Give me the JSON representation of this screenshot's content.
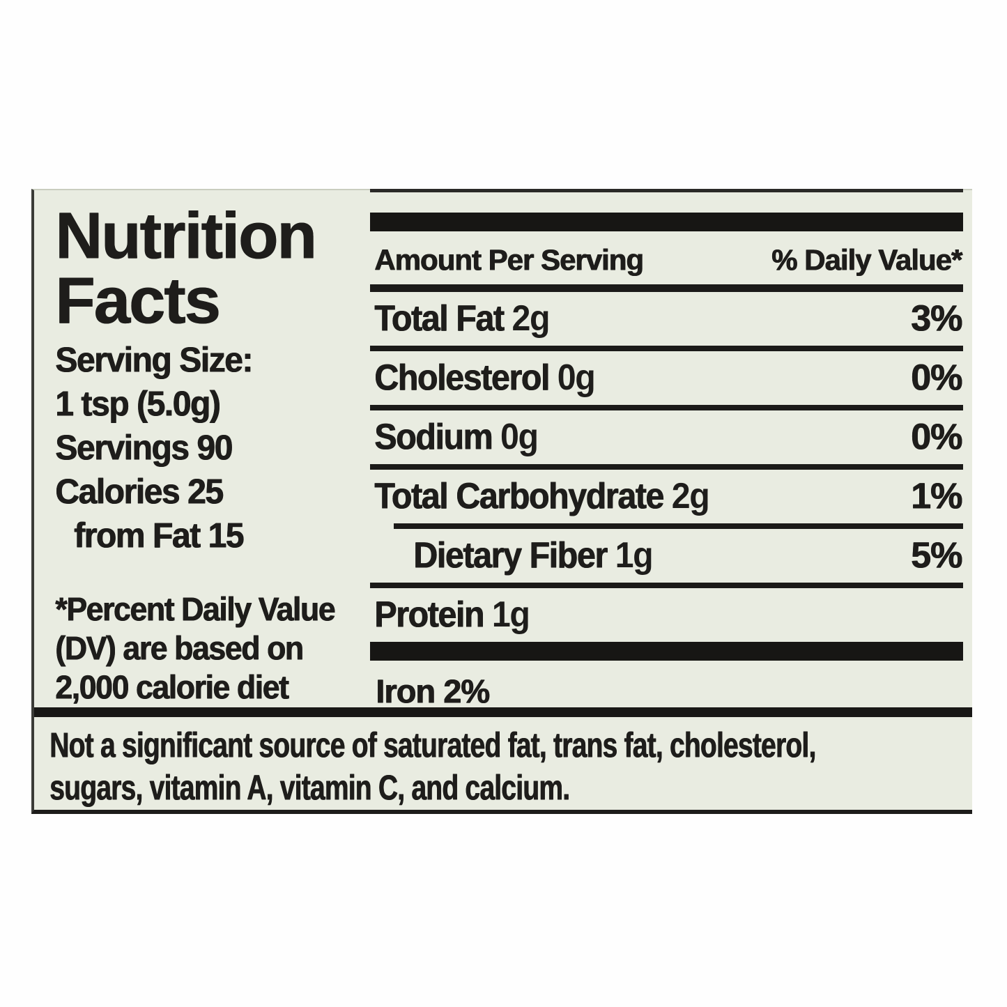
{
  "page": {
    "background": "#ffffff"
  },
  "label": {
    "bg_color": "#e9ece1",
    "text_color": "#1e1d1b",
    "rule_color": "#1b1a18",
    "title": {
      "line1": "Nutrition",
      "line2": "Facts"
    },
    "serving_info": {
      "serving_size_label": "Serving Size:",
      "serving_size_value": "1 tsp (5.0g)",
      "servings": "Servings 90",
      "calories": "Calories 25",
      "calories_from_fat": "from Fat 15"
    },
    "dv_footnote": {
      "line1": "*Percent Daily Value",
      "line2": "(DV) are based on",
      "line3": "2,000 calorie diet"
    },
    "table": {
      "amount_header": "Amount Per Serving",
      "dv_header": "% Daily Value*",
      "rows": [
        {
          "name": "Total Fat",
          "amount": "2g",
          "dv": "3%"
        },
        {
          "name": "Cholesterol",
          "amount": "0g",
          "dv": "0%"
        },
        {
          "name": "Sodium",
          "amount": "0g",
          "dv": "0%"
        },
        {
          "name": "Total Carbohydrate",
          "amount": "2g",
          "dv": "1%"
        },
        {
          "name": "Dietary Fiber",
          "amount": "1g",
          "dv": "5%"
        },
        {
          "name": "Protein",
          "amount": "1g",
          "dv": ""
        }
      ],
      "iron": "Iron 2%"
    },
    "bottom_note": {
      "line1": "Not a significant source of saturated fat, trans fat, cholesterol,",
      "line2": "sugars, vitamin A, vitamin C, and calcium."
    }
  }
}
